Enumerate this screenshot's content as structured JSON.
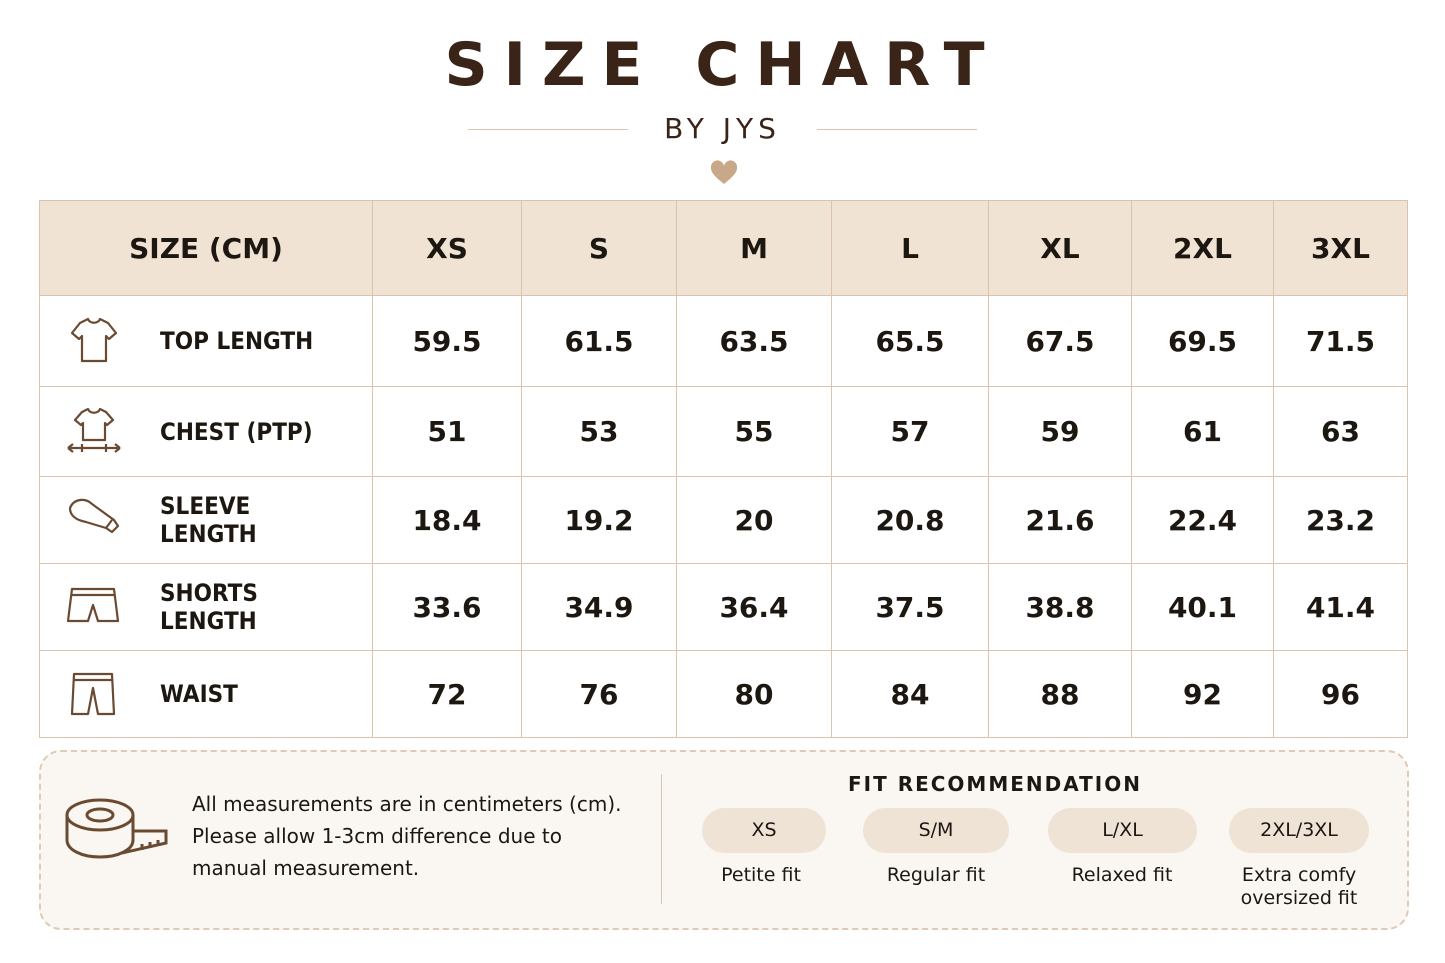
{
  "header": {
    "title": "SIZE CHART",
    "subtitle": "BY JYS"
  },
  "table": {
    "columns": [
      "SIZE (CM)",
      "XS",
      "S",
      "M",
      "L",
      "XL",
      "2XL",
      "3XL"
    ],
    "rows": [
      {
        "label": "TOP LENGTH",
        "values": [
          59.5,
          61.5,
          63.5,
          65.5,
          67.5,
          69.5,
          71.5
        ]
      },
      {
        "label": "CHEST (PTP)",
        "values": [
          51,
          53,
          55,
          57,
          59,
          61,
          63
        ]
      },
      {
        "label": "SLEEVE LENGTH",
        "values": [
          18.4,
          19.2,
          20,
          20.8,
          21.6,
          22.4,
          23.2
        ]
      },
      {
        "label": "SHORTS LENGTH",
        "values": [
          33.6,
          34.9,
          36.4,
          37.5,
          38.8,
          40.1,
          41.4
        ]
      },
      {
        "label": "WAIST",
        "values": [
          72,
          76,
          80,
          84,
          88,
          92,
          96
        ]
      }
    ]
  },
  "note": {
    "text": "All measurements are in centimeters (cm). Please allow 1-3cm difference due to manual measurement."
  },
  "fit": {
    "title": "FIT RECOMMENDATION",
    "items": [
      {
        "size": "XS",
        "desc": "Petite fit"
      },
      {
        "size": "S/M",
        "desc": "Regular fit"
      },
      {
        "size": "L/XL",
        "desc": "Relaxed fit"
      },
      {
        "size": "2XL/3XL",
        "desc": "Extra comfy oversized fit"
      }
    ]
  }
}
